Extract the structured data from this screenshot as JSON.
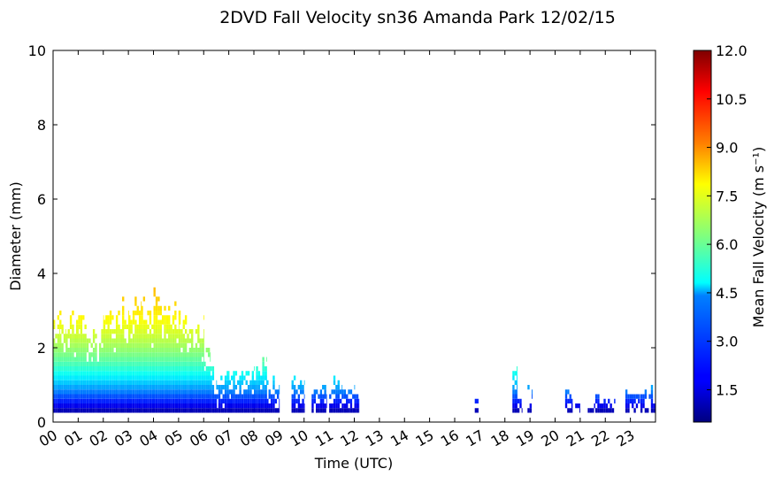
{
  "chart_data": {
    "type": "heatmap",
    "title": "2DVD Fall Velocity sn36 Amanda Park 12/02/15",
    "xlabel": "Time (UTC)",
    "ylabel": "Diameter (mm)",
    "xlim": [
      0,
      24
    ],
    "ylim": [
      0,
      10
    ],
    "x_tick_labels": [
      "00",
      "01",
      "02",
      "03",
      "04",
      "05",
      "06",
      "07",
      "08",
      "09",
      "10",
      "11",
      "12",
      "13",
      "14",
      "15",
      "16",
      "17",
      "18",
      "19",
      "20",
      "21",
      "22",
      "23"
    ],
    "y_tick_labels": [
      "0",
      "2",
      "4",
      "6",
      "8",
      "10"
    ],
    "colorbar": {
      "label": "Mean Fall Velocity (m s⁻¹)",
      "range": [
        0.5,
        12.0
      ],
      "tick_labels": [
        "1.5",
        "3.0",
        "4.5",
        "6.0",
        "7.5",
        "9.0",
        "10.5",
        "12.0"
      ],
      "colormap": "jet"
    },
    "diameter_bin_mm": 0.125,
    "time_bin_hours": 0.0833,
    "columns": [
      {
        "start": 0.0,
        "end": 0.25,
        "d_max": 2.9
      },
      {
        "start": 0.25,
        "end": 0.5,
        "d_max": 2.7
      },
      {
        "start": 0.5,
        "end": 1.0,
        "d_max": 2.8
      },
      {
        "start": 1.0,
        "end": 1.5,
        "d_max": 2.7
      },
      {
        "start": 1.5,
        "end": 2.0,
        "d_max": 2.6
      },
      {
        "start": 2.0,
        "end": 2.5,
        "d_max": 2.8
      },
      {
        "start": 2.5,
        "end": 3.0,
        "d_max": 3.2
      },
      {
        "start": 3.0,
        "end": 3.5,
        "d_max": 3.3
      },
      {
        "start": 3.5,
        "end": 4.0,
        "d_max": 3.1
      },
      {
        "start": 4.0,
        "end": 4.5,
        "d_max": 3.4
      },
      {
        "start": 4.5,
        "end": 5.0,
        "d_max": 3.1
      },
      {
        "start": 5.0,
        "end": 5.5,
        "d_max": 2.9
      },
      {
        "start": 5.5,
        "end": 6.0,
        "d_max": 2.7
      },
      {
        "start": 6.0,
        "end": 6.25,
        "d_max": 1.8
      },
      {
        "start": 6.25,
        "end": 6.5,
        "d_max": 1.4
      },
      {
        "start": 6.5,
        "end": 7.0,
        "d_max": 1.2
      },
      {
        "start": 7.0,
        "end": 7.5,
        "d_max": 1.3
      },
      {
        "start": 7.5,
        "end": 8.0,
        "d_max": 1.3
      },
      {
        "start": 8.0,
        "end": 8.5,
        "d_max": 1.6
      },
      {
        "start": 8.5,
        "end": 9.0,
        "d_max": 1.1
      },
      {
        "start": 9.5,
        "end": 10.0,
        "d_max": 1.1
      },
      {
        "start": 10.3,
        "end": 10.9,
        "d_max": 0.9
      },
      {
        "start": 11.0,
        "end": 11.5,
        "d_max": 1.1
      },
      {
        "start": 11.5,
        "end": 12.0,
        "d_max": 0.9
      },
      {
        "start": 12.0,
        "end": 12.2,
        "d_max": 0.8
      },
      {
        "start": 16.8,
        "end": 16.95,
        "d_max": 0.6
      },
      {
        "start": 18.3,
        "end": 18.5,
        "d_max": 1.4
      },
      {
        "start": 18.5,
        "end": 18.7,
        "d_max": 0.7
      },
      {
        "start": 18.9,
        "end": 19.1,
        "d_max": 0.9
      },
      {
        "start": 20.4,
        "end": 20.7,
        "d_max": 0.8
      },
      {
        "start": 20.8,
        "end": 21.0,
        "d_max": 0.6
      },
      {
        "start": 21.3,
        "end": 21.6,
        "d_max": 0.4
      },
      {
        "start": 21.6,
        "end": 22.4,
        "d_max": 0.6
      },
      {
        "start": 22.8,
        "end": 23.4,
        "d_max": 0.8
      },
      {
        "start": 23.4,
        "end": 24.0,
        "d_max": 0.9
      }
    ]
  }
}
